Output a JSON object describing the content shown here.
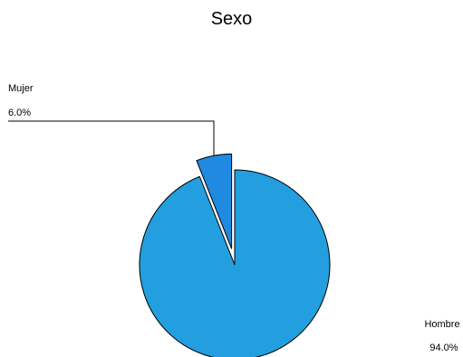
{
  "chart_data": {
    "type": "pie",
    "title": "Sexo",
    "slices": [
      {
        "label": "Hombre",
        "value": 94.0,
        "value_label": "94.0%",
        "color": "#239fdf"
      },
      {
        "label": "Mujer",
        "value": 6.0,
        "value_label": "6.0%",
        "color": "#1f8ae0",
        "exploded": true
      }
    ],
    "legend": "none"
  }
}
